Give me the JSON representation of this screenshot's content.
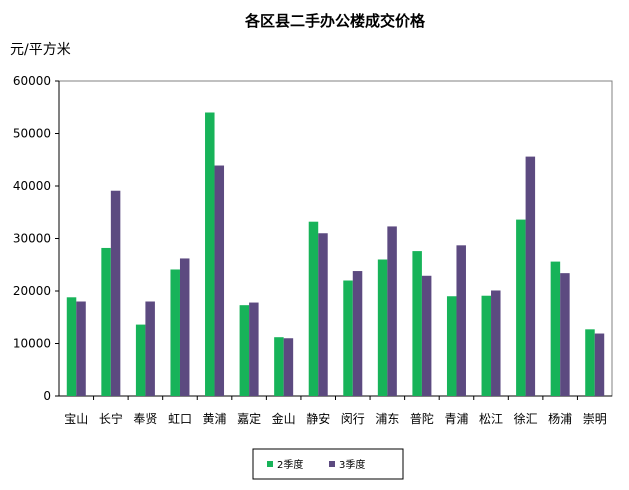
{
  "chart_data": {
    "type": "bar",
    "title": "各区县二手办公楼成交价格",
    "ylabel": "元/平方米",
    "xlabel": "",
    "ylim": [
      0,
      60000
    ],
    "yticks": [
      0,
      10000,
      20000,
      30000,
      40000,
      50000,
      60000
    ],
    "ytick_labels": [
      "0",
      "10000",
      "20000",
      "30000",
      "40000",
      "50000",
      "60000"
    ],
    "grid": false,
    "legend_position": "bottom",
    "categories": [
      "宝山",
      "长宁",
      "奉贤",
      "虹口",
      "黄浦",
      "嘉定",
      "金山",
      "静安",
      "闵行",
      "浦东",
      "普陀",
      "青浦",
      "松江",
      "徐汇",
      "杨浦",
      "崇明"
    ],
    "series": [
      {
        "name": "2季度",
        "color": "#17b359",
        "values": [
          18800,
          28200,
          13600,
          24100,
          54000,
          17300,
          11200,
          33200,
          22000,
          26000,
          27600,
          19000,
          19100,
          33600,
          25600,
          12700
        ]
      },
      {
        "name": "3季度",
        "color": "#5c4a80",
        "values": [
          18000,
          39100,
          18000,
          26200,
          43900,
          17800,
          11000,
          31000,
          23800,
          32300,
          22900,
          28700,
          20100,
          45600,
          23400,
          11900
        ]
      }
    ]
  }
}
